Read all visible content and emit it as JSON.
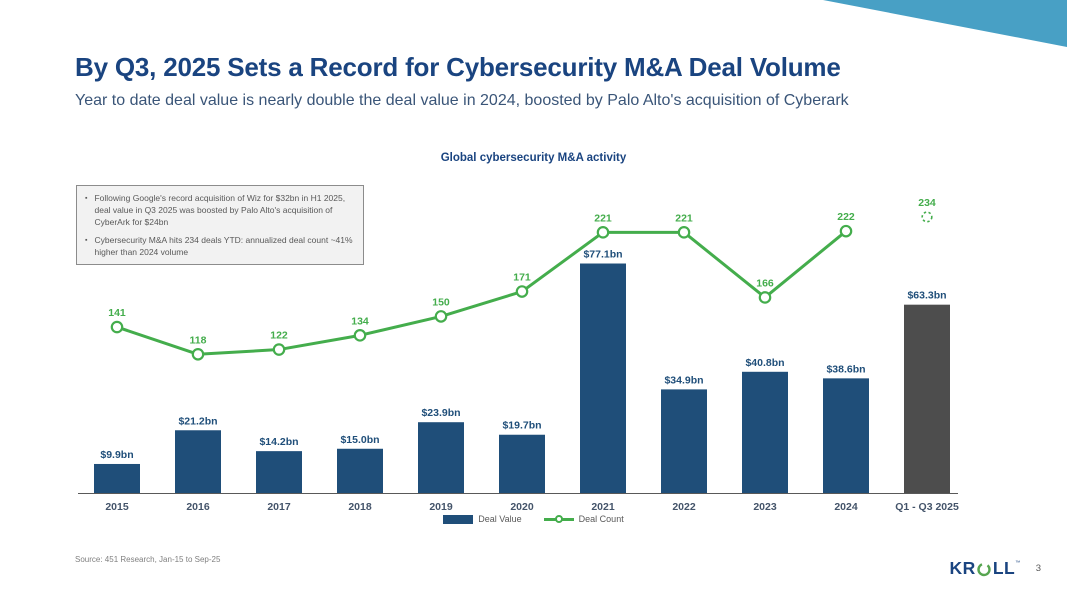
{
  "slide": {
    "title": "By Q3, 2025 Sets a Record for Cybersecurity M&A Deal Volume",
    "subtitle": "Year to date deal value is nearly double the deal value in 2024, boosted by Palo Alto's acquisition of Cyberark",
    "accent_color": "#48A0C5"
  },
  "callout": {
    "bullet_char": "▪",
    "bullets": [
      "Following Google's record acquisition of Wiz for $32bn in H1 2025, deal value in Q3 2025 was boosted by Palo Alto's acquisition of CyberArk for $24bn",
      "Cybersecurity M&A hits 234 deals YTD: annualized deal count ~41% higher than 2024 volume"
    ]
  },
  "chart_data": {
    "type": "bar+line",
    "title": "Global cybersecurity M&A activity",
    "categories": [
      "2015",
      "2016",
      "2017",
      "2018",
      "2019",
      "2020",
      "2021",
      "2022",
      "2023",
      "2024",
      "Q1 - Q3 2025"
    ],
    "gridlines": false,
    "value_axis_visible": false,
    "count_axis_visible": false,
    "series": [
      {
        "name": "Deal Value",
        "type": "bar",
        "unit": "$bn",
        "values": [
          9.9,
          21.2,
          14.2,
          15.0,
          23.9,
          19.7,
          77.1,
          34.9,
          40.8,
          38.6,
          63.3
        ],
        "labels": [
          "$9.9bn",
          "$21.2bn",
          "$14.2bn",
          "$15.0bn",
          "$23.9bn",
          "$19.7bn",
          "$77.1bn",
          "$34.9bn",
          "$40.8bn",
          "$38.6bn",
          "$63.3bn"
        ],
        "color": "#1F4E79",
        "point_colors": [
          "#1F4E79",
          "#1F4E79",
          "#1F4E79",
          "#1F4E79",
          "#1F4E79",
          "#1F4E79",
          "#1F4E79",
          "#1F4E79",
          "#1F4E79",
          "#1F4E79",
          "#4D4D4D"
        ]
      },
      {
        "name": "Deal Count",
        "type": "line",
        "values": [
          141,
          118,
          122,
          134,
          150,
          171,
          221,
          221,
          166,
          222,
          234
        ],
        "color": "#44AD4C",
        "connect_last": false,
        "last_marker": "dashed"
      }
    ],
    "legend": {
      "position": "bottom-center",
      "items": [
        "Deal Value",
        "Deal Count"
      ]
    }
  },
  "footer": {
    "source": "Source: 451 Research, Jan-15 to Sep-25",
    "logo_left": "KR",
    "logo_right": "LL",
    "logo_tm": "™",
    "page_number": "3"
  }
}
